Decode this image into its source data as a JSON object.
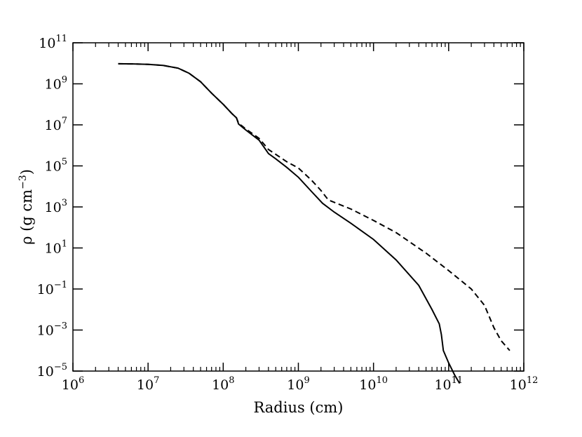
{
  "chart_data": {
    "type": "line",
    "xlabel": "Radius (cm)",
    "ylabel": "ρ (g cm",
    "ylabel_exponent": "−3",
    "ylabel_close": ")",
    "xscale": "log",
    "yscale": "log",
    "xlim": [
      1000000,
      1000000000000
    ],
    "ylim": [
      1e-05,
      100000000000
    ],
    "grid": false,
    "legend": "none",
    "x_ticks": [
      {
        "base": "10",
        "exp": "6"
      },
      {
        "base": "10",
        "exp": "7"
      },
      {
        "base": "10",
        "exp": "8"
      },
      {
        "base": "10",
        "exp": "9"
      },
      {
        "base": "10",
        "exp": "10"
      },
      {
        "base": "10",
        "exp": "11"
      },
      {
        "base": "10",
        "exp": "12"
      }
    ],
    "y_ticks": [
      {
        "base": "10",
        "exp": "−5"
      },
      {
        "base": "10",
        "exp": "−3"
      },
      {
        "base": "10",
        "exp": "−1"
      },
      {
        "base": "10",
        "exp": "1"
      },
      {
        "base": "10",
        "exp": "3"
      },
      {
        "base": "10",
        "exp": "5"
      },
      {
        "base": "10",
        "exp": "7"
      },
      {
        "base": "10",
        "exp": "9"
      },
      {
        "base": "10",
        "exp": "11"
      }
    ],
    "series": [
      {
        "style": "solid",
        "color": "#000000",
        "points": [
          [
            4000000.0,
            9500000000.0
          ],
          [
            6300000.0,
            9300000000.0
          ],
          [
            10000000.0,
            8900000000.0
          ],
          [
            15800000.0,
            7900000000.0
          ],
          [
            25100000.0,
            5800000000.0
          ],
          [
            35000000.0,
            3300000000.0
          ],
          [
            50000000.0,
            1260000000.0
          ],
          [
            70000000.0,
            350000000.0
          ],
          [
            100000000.0,
            100000000.0
          ],
          [
            130000000.0,
            36000000.0
          ],
          [
            150000000.0,
            22000000.0
          ],
          [
            160000000.0,
            11000000.0
          ],
          [
            200000000.0,
            5600000.0
          ],
          [
            300000000.0,
            1800000.0
          ],
          [
            400000000.0,
            400000.0
          ],
          [
            500000000.0,
            220000.0
          ],
          [
            700000000.0,
            85000.0
          ],
          [
            1000000000.0,
            28000.0
          ],
          [
            1500000000.0,
            5600.0
          ],
          [
            2100000000.0,
            1500.0
          ],
          [
            3000000000.0,
            560.0
          ],
          [
            5000000000.0,
            160.0
          ],
          [
            10000000000.0,
            26.0
          ],
          [
            20000000000.0,
            2.6
          ],
          [
            40000000000.0,
            0.15
          ],
          [
            60000000000.0,
            0.01
          ],
          [
            75000000000.0,
            0.002
          ],
          [
            80000000000.0,
            0.0006
          ],
          [
            85000000000.0,
            0.0001
          ],
          [
            100000000000.0,
            2.5e-05
          ],
          [
            120000000000.0,
            6.5e-06
          ],
          [
            140000000000.0,
            2.5e-06
          ]
        ]
      },
      {
        "style": "dashed",
        "color": "#000000",
        "points": [
          [
            4000000.0,
            9500000000.0
          ],
          [
            6300000.0,
            9300000000.0
          ],
          [
            10000000.0,
            8900000000.0
          ],
          [
            15800000.0,
            7900000000.0
          ],
          [
            25100000.0,
            5800000000.0
          ],
          [
            35000000.0,
            3300000000.0
          ],
          [
            50000000.0,
            1260000000.0
          ],
          [
            70000000.0,
            350000000.0
          ],
          [
            100000000.0,
            100000000.0
          ],
          [
            130000000.0,
            36000000.0
          ],
          [
            150000000.0,
            22000000.0
          ],
          [
            160000000.0,
            12000000.0
          ],
          [
            200000000.0,
            6300000.0
          ],
          [
            300000000.0,
            2200000.0
          ],
          [
            400000000.0,
            630000.0
          ],
          [
            700000000.0,
            160000.0
          ],
          [
            1000000000.0,
            79000.0
          ],
          [
            1500000000.0,
            20000.0
          ],
          [
            2000000000.0,
            6300.0
          ],
          [
            2500000000.0,
            2200.0
          ],
          [
            5000000000.0,
            790.0
          ],
          [
            10000000000.0,
            220.0
          ],
          [
            20000000000.0,
            56.0
          ],
          [
            50000000000.0,
            5.6
          ],
          [
            100000000000.0,
            0.79
          ],
          [
            200000000000.0,
            0.1
          ],
          [
            300000000000.0,
            0.016
          ],
          [
            400000000000.0,
            0.0013
          ],
          [
            500000000000.0,
            0.0003
          ],
          [
            650000000000.0,
            0.0001
          ]
        ]
      }
    ]
  }
}
